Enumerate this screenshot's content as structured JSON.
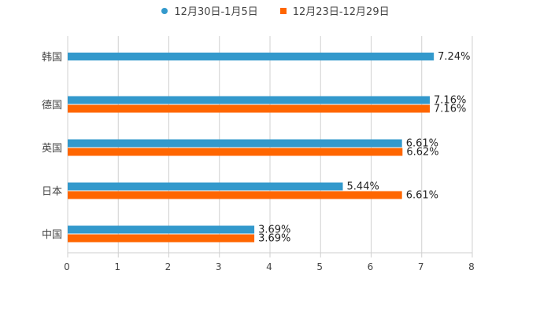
{
  "chart_data": {
    "type": "bar",
    "orientation": "horizontal",
    "title": "",
    "xlabel": "",
    "ylabel": "",
    "categories": [
      "韩国",
      "德国",
      "英国",
      "日本",
      "中国"
    ],
    "series": [
      {
        "name": "12月30日-1月5日",
        "color": "#3399cc",
        "values": [
          7.24,
          7.16,
          6.61,
          5.44,
          3.69
        ],
        "labels": [
          "7.24%",
          "7.16%",
          "6.61%",
          "5.44%",
          "3.69%"
        ]
      },
      {
        "name": "12月23日-12月29日",
        "color": "#ff6600",
        "values": [
          null,
          7.16,
          6.62,
          6.61,
          3.69
        ],
        "labels": [
          "",
          "7.16%",
          "6.62%",
          "6.61%",
          "3.69%"
        ]
      }
    ],
    "xlim": [
      0,
      8
    ],
    "xticks": [
      "0",
      "1",
      "2",
      "3",
      "4",
      "5",
      "6",
      "7",
      "8"
    ],
    "grid": true,
    "legend": "top-center"
  }
}
